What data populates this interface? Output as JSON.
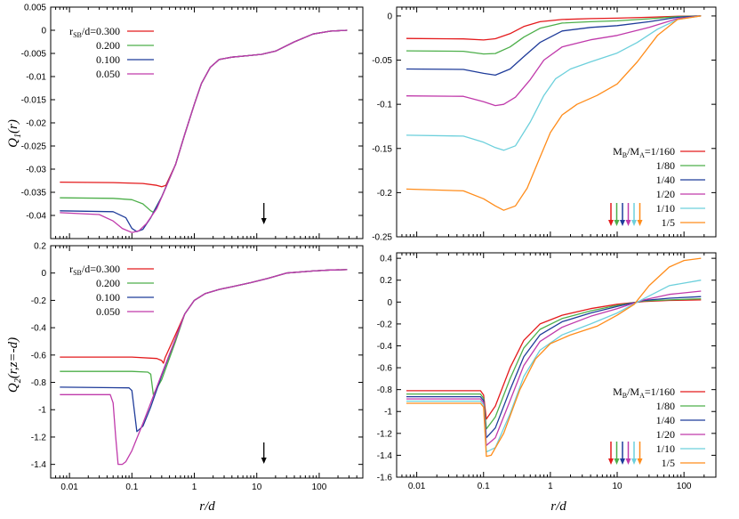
{
  "chart_data": [
    {
      "type": "line",
      "panel": "top-left",
      "ylabel": "Q_1(r)",
      "xlabel": "",
      "xscale": "log",
      "xlim": [
        0.005,
        500
      ],
      "ylim": [
        -0.045,
        0.005
      ],
      "yticks": [
        0.005,
        0,
        -0.005,
        -0.01,
        -0.015,
        -0.02,
        -0.025,
        -0.03,
        -0.035,
        -0.04
      ],
      "ytick_labels": [
        "0.005",
        "0",
        "-0.005",
        "-0.01",
        "-0.015",
        "-0.02",
        "-0.025",
        "-0.03",
        "-0.035",
        "-0.04"
      ],
      "xticks": [
        0.01,
        0.1,
        1,
        10,
        100
      ],
      "xtick_labels": [],
      "legend_title": "r_SB/d=",
      "legend": [
        "r_SB/d=0.300",
        "0.200",
        "0.100",
        "0.050"
      ],
      "arrow_x": 13,
      "series": [
        {
          "name": "r_SB/d=0.300",
          "color": "#e41a1c",
          "x": [
            0.007,
            0.05,
            0.15,
            0.25,
            0.3,
            0.35,
            0.5,
            0.7,
            1,
            1.3,
            1.8,
            2.5,
            4,
            7,
            12,
            20,
            40,
            80,
            150,
            280
          ],
          "y": [
            -0.0328,
            -0.0329,
            -0.0331,
            -0.0335,
            -0.0338,
            -0.0335,
            -0.029,
            -0.0225,
            -0.016,
            -0.0115,
            -0.008,
            -0.0063,
            -0.0058,
            -0.0055,
            -0.0052,
            -0.0045,
            -0.0025,
            -0.0008,
            -0.0002,
            0
          ]
        },
        {
          "name": "0.200",
          "color": "#4daf4a",
          "x": [
            0.007,
            0.05,
            0.1,
            0.15,
            0.2,
            0.22,
            0.3,
            0.5,
            0.7,
            1,
            1.3,
            1.8,
            2.5,
            4,
            7,
            12,
            20,
            40,
            80,
            150,
            280
          ],
          "y": [
            -0.0362,
            -0.0363,
            -0.0366,
            -0.0375,
            -0.039,
            -0.0393,
            -0.036,
            -0.029,
            -0.0225,
            -0.016,
            -0.0115,
            -0.008,
            -0.0063,
            -0.0058,
            -0.0055,
            -0.0052,
            -0.0045,
            -0.0025,
            -0.0008,
            -0.0002,
            0
          ]
        },
        {
          "name": "0.100",
          "color": "#1f3c9a",
          "x": [
            0.007,
            0.05,
            0.08,
            0.1,
            0.12,
            0.15,
            0.2,
            0.3,
            0.5,
            0.7,
            1,
            1.3,
            1.8,
            2.5,
            4,
            7,
            12,
            20,
            40,
            80,
            150,
            280
          ],
          "y": [
            -0.039,
            -0.0392,
            -0.0405,
            -0.0428,
            -0.0435,
            -0.043,
            -0.0405,
            -0.036,
            -0.029,
            -0.0225,
            -0.016,
            -0.0115,
            -0.008,
            -0.0063,
            -0.0058,
            -0.0055,
            -0.0052,
            -0.0045,
            -0.0025,
            -0.0008,
            -0.0002,
            0
          ]
        },
        {
          "name": "0.050",
          "color": "#c03aab",
          "x": [
            0.007,
            0.03,
            0.05,
            0.07,
            0.1,
            0.13,
            0.17,
            0.25,
            0.35,
            0.5,
            0.7,
            1,
            1.3,
            1.8,
            2.5,
            4,
            7,
            12,
            20,
            40,
            80,
            150,
            280
          ],
          "y": [
            -0.0394,
            -0.0398,
            -0.0412,
            -0.0428,
            -0.0437,
            -0.0433,
            -0.0418,
            -0.0385,
            -0.034,
            -0.029,
            -0.0225,
            -0.016,
            -0.0115,
            -0.008,
            -0.0063,
            -0.0058,
            -0.0055,
            -0.0052,
            -0.0045,
            -0.0025,
            -0.0008,
            -0.0002,
            0
          ]
        }
      ]
    },
    {
      "type": "line",
      "panel": "top-right",
      "ylabel": "",
      "xlabel": "",
      "xscale": "log",
      "xlim": [
        0.005,
        300
      ],
      "ylim": [
        -0.25,
        0.01
      ],
      "yticks": [
        0,
        -0.05,
        -0.1,
        -0.15,
        -0.2,
        -0.25
      ],
      "ytick_labels": [
        "0",
        "-0.05",
        "-0.1",
        "-0.15",
        "-0.2",
        "-0.25"
      ],
      "xticks": [
        0.01,
        0.1,
        1,
        10,
        100
      ],
      "xtick_labels": [],
      "legend_title": "M_B/M_A=",
      "legend": [
        "M_B/M_A=1/160",
        "1/80",
        "1/40",
        "1/20",
        "1/10",
        "1/5"
      ],
      "arrow_colors": [
        "#e41a1c",
        "#4daf4a",
        "#1f3c9a",
        "#c03aab",
        "#6dd0dc",
        "#ff8c1a"
      ],
      "series": [
        {
          "name": "M_B/M_A=1/160",
          "color": "#e41a1c",
          "x": [
            0.007,
            0.05,
            0.1,
            0.15,
            0.25,
            0.4,
            0.7,
            1.5,
            4,
            10,
            30,
            80,
            180
          ],
          "y": [
            -0.0255,
            -0.026,
            -0.0272,
            -0.0258,
            -0.02,
            -0.012,
            -0.0065,
            -0.004,
            -0.003,
            -0.0025,
            -0.0015,
            -0.0004,
            0
          ]
        },
        {
          "name": "1/80",
          "color": "#4daf4a",
          "x": [
            0.007,
            0.05,
            0.1,
            0.15,
            0.25,
            0.4,
            0.7,
            1.5,
            4,
            10,
            30,
            80,
            180
          ],
          "y": [
            -0.0395,
            -0.04,
            -0.043,
            -0.0425,
            -0.035,
            -0.024,
            -0.014,
            -0.008,
            -0.0065,
            -0.0055,
            -0.0032,
            -0.0008,
            0
          ]
        },
        {
          "name": "1/40",
          "color": "#1f3c9a",
          "x": [
            0.007,
            0.05,
            0.1,
            0.15,
            0.25,
            0.4,
            0.7,
            1.5,
            4,
            10,
            30,
            80,
            180
          ],
          "y": [
            -0.06,
            -0.0605,
            -0.065,
            -0.067,
            -0.06,
            -0.046,
            -0.03,
            -0.017,
            -0.013,
            -0.011,
            -0.0065,
            -0.0015,
            0
          ]
        },
        {
          "name": "1/20",
          "color": "#c03aab",
          "x": [
            0.007,
            0.05,
            0.1,
            0.15,
            0.2,
            0.3,
            0.5,
            0.8,
            1.5,
            4,
            10,
            30,
            80,
            180
          ],
          "y": [
            -0.0905,
            -0.091,
            -0.097,
            -0.1015,
            -0.1,
            -0.092,
            -0.072,
            -0.05,
            -0.035,
            -0.027,
            -0.022,
            -0.013,
            -0.003,
            0
          ]
        },
        {
          "name": "1/10",
          "color": "#6dd0dc",
          "x": [
            0.007,
            0.05,
            0.1,
            0.15,
            0.2,
            0.3,
            0.5,
            0.8,
            1.2,
            2,
            4,
            10,
            20,
            40,
            80,
            180
          ],
          "y": [
            -0.135,
            -0.136,
            -0.143,
            -0.149,
            -0.152,
            -0.147,
            -0.12,
            -0.09,
            -0.071,
            -0.06,
            -0.052,
            -0.042,
            -0.03,
            -0.015,
            -0.004,
            0
          ]
        },
        {
          "name": "1/5",
          "color": "#ff8c1a",
          "x": [
            0.007,
            0.05,
            0.1,
            0.15,
            0.2,
            0.3,
            0.45,
            0.7,
            1,
            1.5,
            2.5,
            5,
            10,
            20,
            40,
            80,
            180
          ],
          "y": [
            -0.196,
            -0.198,
            -0.207,
            -0.215,
            -0.22,
            -0.215,
            -0.195,
            -0.16,
            -0.132,
            -0.112,
            -0.1,
            -0.09,
            -0.077,
            -0.052,
            -0.022,
            -0.004,
            0
          ]
        }
      ]
    },
    {
      "type": "line",
      "panel": "bottom-left",
      "ylabel": "Q_2(r,z=-d)",
      "xlabel": "r/d",
      "xscale": "log",
      "xlim": [
        0.005,
        500
      ],
      "ylim": [
        -1.5,
        0.2
      ],
      "yticks": [
        0.2,
        0,
        -0.2,
        -0.4,
        -0.6,
        -0.8,
        -1,
        -1.2,
        -1.4
      ],
      "ytick_labels": [
        "0.2",
        "0",
        "-0.2",
        "-0.4",
        "-0.6",
        "-0.8",
        "-1",
        "-1.2",
        "-1.4"
      ],
      "xticks": [
        0.01,
        0.1,
        1,
        10,
        100
      ],
      "xtick_labels": [
        "0.01",
        "0.1",
        "1",
        "10",
        "100"
      ],
      "legend_title": "r_SB/d=",
      "legend": [
        "r_SB/d=0.300",
        "0.200",
        "0.100",
        "0.050"
      ],
      "arrow_x": 13,
      "series": [
        {
          "name": "r_SB/d=0.300",
          "color": "#e41a1c",
          "x": [
            0.007,
            0.1,
            0.25,
            0.3,
            0.32,
            0.34,
            0.5,
            0.7,
            1,
            1.5,
            2.5,
            4,
            8,
            15,
            30,
            80,
            150,
            280
          ],
          "y": [
            -0.615,
            -0.615,
            -0.625,
            -0.64,
            -0.66,
            -0.62,
            -0.45,
            -0.3,
            -0.2,
            -0.15,
            -0.12,
            -0.1,
            -0.07,
            -0.04,
            0.0,
            0.015,
            0.022,
            0.025
          ]
        },
        {
          "name": "0.200",
          "color": "#4daf4a",
          "x": [
            0.007,
            0.1,
            0.18,
            0.2,
            0.22,
            0.3,
            0.5,
            0.7,
            1,
            1.5,
            2.5,
            4,
            8,
            15,
            30,
            80,
            150,
            280
          ],
          "y": [
            -0.72,
            -0.72,
            -0.725,
            -0.74,
            -0.89,
            -0.78,
            -0.5,
            -0.3,
            -0.2,
            -0.15,
            -0.12,
            -0.1,
            -0.07,
            -0.04,
            0.0,
            0.015,
            0.022,
            0.025
          ]
        },
        {
          "name": "0.100",
          "color": "#1f3c9a",
          "x": [
            0.007,
            0.09,
            0.1,
            0.12,
            0.15,
            0.2,
            0.3,
            0.5,
            0.7,
            1,
            1.5,
            2.5,
            4,
            8,
            15,
            30,
            80,
            150,
            280
          ],
          "y": [
            -0.835,
            -0.84,
            -0.86,
            -1.16,
            -1.12,
            -0.98,
            -0.75,
            -0.48,
            -0.3,
            -0.2,
            -0.15,
            -0.12,
            -0.1,
            -0.07,
            -0.04,
            0.0,
            0.015,
            0.022,
            0.025
          ]
        },
        {
          "name": "0.050",
          "color": "#c03aab",
          "x": [
            0.007,
            0.045,
            0.05,
            0.055,
            0.06,
            0.07,
            0.08,
            0.1,
            0.15,
            0.2,
            0.3,
            0.5,
            0.7,
            1,
            1.5,
            2.5,
            4,
            8,
            15,
            30,
            80,
            150,
            280
          ],
          "y": [
            -0.89,
            -0.89,
            -0.95,
            -1.2,
            -1.4,
            -1.4,
            -1.38,
            -1.3,
            -1.1,
            -0.95,
            -0.74,
            -0.48,
            -0.3,
            -0.2,
            -0.15,
            -0.12,
            -0.1,
            -0.07,
            -0.04,
            0.0,
            0.015,
            0.022,
            0.025
          ]
        }
      ]
    },
    {
      "type": "line",
      "panel": "bottom-right",
      "ylabel": "",
      "xlabel": "r/d",
      "xscale": "log",
      "xlim": [
        0.005,
        300
      ],
      "ylim": [
        -1.6,
        0.45
      ],
      "yticks": [
        0.4,
        0.2,
        0,
        -0.2,
        -0.4,
        -0.6,
        -0.8,
        -1,
        -1.2,
        -1.4,
        -1.6
      ],
      "ytick_labels": [
        "0.4",
        "0.2",
        "0",
        "-0.2",
        "-0.4",
        "-0.6",
        "-0.8",
        "-1",
        "-1.2",
        "-1.4",
        "-1.6"
      ],
      "xticks": [
        0.01,
        0.1,
        1,
        10,
        100
      ],
      "xtick_labels": [
        "0.01",
        "0.1",
        "1",
        "10",
        "100"
      ],
      "legend_title": "M_B/M_A=",
      "legend": [
        "M_B/M_A=1/160",
        "1/80",
        "1/40",
        "1/20",
        "1/10",
        "1/5"
      ],
      "arrow_colors": [
        "#e41a1c",
        "#4daf4a",
        "#1f3c9a",
        "#c03aab",
        "#6dd0dc",
        "#ff8c1a"
      ],
      "series": [
        {
          "name": "M_B/M_A=1/160",
          "color": "#e41a1c",
          "x": [
            0.007,
            0.09,
            0.1,
            0.11,
            0.15,
            0.25,
            0.4,
            0.7,
            1.5,
            4,
            10,
            25,
            60,
            180
          ],
          "y": [
            -0.81,
            -0.81,
            -0.85,
            -1.07,
            -0.95,
            -0.6,
            -0.35,
            -0.2,
            -0.12,
            -0.06,
            -0.02,
            0.005,
            0.015,
            0.02
          ]
        },
        {
          "name": "1/80",
          "color": "#4daf4a",
          "x": [
            0.007,
            0.09,
            0.1,
            0.11,
            0.15,
            0.25,
            0.4,
            0.7,
            1.5,
            4,
            10,
            25,
            60,
            180
          ],
          "y": [
            -0.84,
            -0.84,
            -0.88,
            -1.16,
            -1.05,
            -0.7,
            -0.42,
            -0.25,
            -0.15,
            -0.08,
            -0.03,
            0.01,
            0.02,
            0.03
          ]
        },
        {
          "name": "1/40",
          "color": "#1f3c9a",
          "x": [
            0.007,
            0.09,
            0.1,
            0.11,
            0.15,
            0.25,
            0.4,
            0.7,
            1.5,
            4,
            10,
            25,
            60,
            180
          ],
          "y": [
            -0.865,
            -0.865,
            -0.9,
            -1.24,
            -1.15,
            -0.8,
            -0.5,
            -0.3,
            -0.18,
            -0.1,
            -0.04,
            0.015,
            0.035,
            0.05
          ]
        },
        {
          "name": "1/20",
          "color": "#c03aab",
          "x": [
            0.007,
            0.09,
            0.1,
            0.11,
            0.15,
            0.25,
            0.4,
            0.7,
            1.5,
            4,
            10,
            25,
            60,
            180
          ],
          "y": [
            -0.885,
            -0.885,
            -0.92,
            -1.31,
            -1.24,
            -0.9,
            -0.58,
            -0.36,
            -0.23,
            -0.13,
            -0.06,
            0.02,
            0.07,
            0.1
          ]
        },
        {
          "name": "1/10",
          "color": "#6dd0dc",
          "x": [
            0.007,
            0.09,
            0.1,
            0.11,
            0.15,
            0.25,
            0.4,
            0.7,
            1.5,
            4,
            10,
            25,
            60,
            180
          ],
          "y": [
            -0.905,
            -0.905,
            -0.94,
            -1.37,
            -1.33,
            -1.02,
            -0.68,
            -0.44,
            -0.3,
            -0.2,
            -0.1,
            0.03,
            0.15,
            0.2
          ]
        },
        {
          "name": "1/5",
          "color": "#ff8c1a",
          "x": [
            0.007,
            0.09,
            0.1,
            0.11,
            0.13,
            0.2,
            0.35,
            0.6,
            1,
            2,
            5,
            10,
            18,
            30,
            60,
            100,
            180
          ],
          "y": [
            -0.925,
            -0.925,
            -0.96,
            -1.41,
            -1.4,
            -1.2,
            -0.8,
            -0.52,
            -0.38,
            -0.3,
            -0.22,
            -0.12,
            -0.02,
            0.15,
            0.32,
            0.38,
            0.4
          ]
        }
      ]
    }
  ],
  "labels": {
    "ylabel_top_main": "Q",
    "ylabel_top_sub": "1",
    "ylabel_top_arg": "(r)",
    "ylabel_bottom_main": "Q",
    "ylabel_bottom_sub": "2",
    "ylabel_bottom_arg": "(r,z=-d)",
    "xlabel_left": "r/d",
    "xlabel_right": "r/d",
    "leg_rsb_prefix": "r",
    "leg_rsb_sub": "SB",
    "leg_rsb_suffix": "/d=0.300",
    "leg_mb_m": "M",
    "leg_mb_subB": "B",
    "leg_mb_mid": "/M",
    "leg_mb_subA": "A",
    "leg_mb_suffix": "=1/160"
  }
}
